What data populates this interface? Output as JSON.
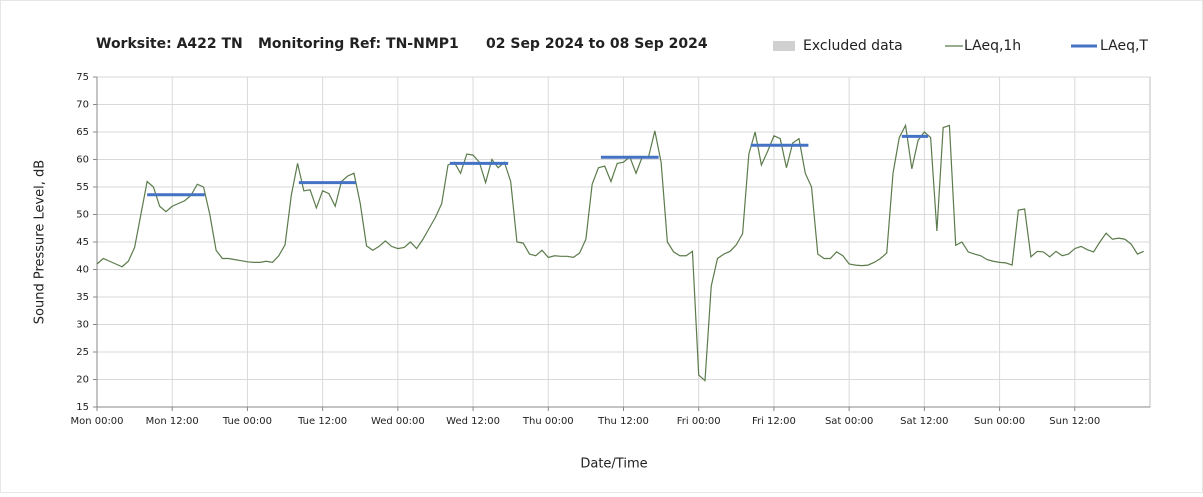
{
  "chart_data": {
    "type": "line",
    "title_parts": [
      "Worksite: A422 TN",
      "Monitoring Ref: TN-NMP1",
      "02 Sep 2024 to 08 Sep 2024"
    ],
    "xlabel": "Date/Time",
    "ylabel": "Sound Pressure Level, dB",
    "xlim": [
      0,
      168
    ],
    "xticks": [
      {
        "value": 0,
        "label": "Mon 00:00"
      },
      {
        "value": 12,
        "label": "Mon 12:00"
      },
      {
        "value": 24,
        "label": "Tue 00:00"
      },
      {
        "value": 36,
        "label": "Tue 12:00"
      },
      {
        "value": 48,
        "label": "Wed 00:00"
      },
      {
        "value": 60,
        "label": "Wed 12:00"
      },
      {
        "value": 72,
        "label": "Thu 00:00"
      },
      {
        "value": 84,
        "label": "Thu 12:00"
      },
      {
        "value": 96,
        "label": "Fri 00:00"
      },
      {
        "value": 108,
        "label": "Fri 12:00"
      },
      {
        "value": 120,
        "label": "Sat 00:00"
      },
      {
        "value": 132,
        "label": "Sat 12:00"
      },
      {
        "value": 144,
        "label": "Sun 00:00"
      },
      {
        "value": 156,
        "label": "Sun 12:00"
      }
    ],
    "ylim": [
      15,
      75
    ],
    "yticks": [
      15,
      20,
      25,
      30,
      35,
      40,
      45,
      50,
      55,
      60,
      65,
      70,
      75
    ],
    "grid": true,
    "legend": "top-right",
    "series": [
      {
        "name": "Excluded data",
        "color": "#d0d0d0"
      },
      {
        "name": "LAeq,1h",
        "color": "#5b7b4b",
        "values": [
          41,
          42,
          41.5,
          41,
          40.5,
          41.5,
          44,
          50,
          56,
          55,
          51.5,
          50.5,
          51.5,
          52,
          52.5,
          53.5,
          55.5,
          55,
          50,
          43.5,
          42,
          42,
          41.8,
          41.6,
          41.4,
          41.3,
          41.3,
          41.5,
          41.3,
          42.5,
          44.5,
          53.5,
          59.3,
          54.3,
          54.5,
          51.2,
          54.3,
          53.8,
          51.5,
          56,
          57,
          57.5,
          52,
          44.3,
          43.5,
          44.2,
          45.2,
          44.2,
          43.8,
          44,
          45,
          43.8,
          45.5,
          47.5,
          49.5,
          52,
          59,
          59.5,
          57.5,
          61,
          60.8,
          59.5,
          55.8,
          60,
          58.5,
          59.5,
          56,
          45,
          44.8,
          42.8,
          42.5,
          43.5,
          42.2,
          42.5,
          42.4,
          42.4,
          42.2,
          43,
          45.5,
          55.5,
          58.5,
          58.8,
          56,
          59.3,
          59.5,
          60.5,
          57.5,
          60.5,
          60.5,
          65.2,
          59.5,
          45,
          43.2,
          42.5,
          42.5,
          43.3,
          20.8,
          19.8,
          37,
          42,
          42.8,
          43.3,
          44.5,
          46.5,
          61,
          65,
          59,
          61.5,
          64.3,
          63.8,
          58.5,
          63,
          63.8,
          57.5,
          55,
          42.8,
          42,
          42,
          43.2,
          42.5,
          41,
          40.8,
          40.7,
          40.8,
          41.3,
          42,
          43,
          57.5,
          64,
          66.2,
          58.3,
          63.5,
          65,
          64,
          47,
          65.8,
          66.2,
          44.4,
          45,
          43.2,
          42.8,
          42.5,
          41.8,
          41.5,
          41.3,
          41.2,
          40.8,
          50.8,
          51,
          42.3,
          43.3,
          43.2,
          42.3,
          43.3,
          42.5,
          42.8,
          43.8,
          44.2,
          43.6,
          43.2,
          45,
          46.6,
          45.5,
          45.7,
          45.5,
          44.6,
          42.8,
          43.3
        ]
      },
      {
        "name": "LAeq,T",
        "color": "#4472c4",
        "segments": [
          {
            "start": 8,
            "end": 17.2,
            "value": 53.6
          },
          {
            "start": 32.2,
            "end": 41.3,
            "value": 55.8
          },
          {
            "start": 56.3,
            "end": 65.6,
            "value": 59.3
          },
          {
            "start": 80.4,
            "end": 89.6,
            "value": 60.4
          },
          {
            "start": 104.3,
            "end": 113.5,
            "value": 62.6
          },
          {
            "start": 128.4,
            "end": 132.6,
            "value": 64.2
          }
        ]
      }
    ]
  }
}
